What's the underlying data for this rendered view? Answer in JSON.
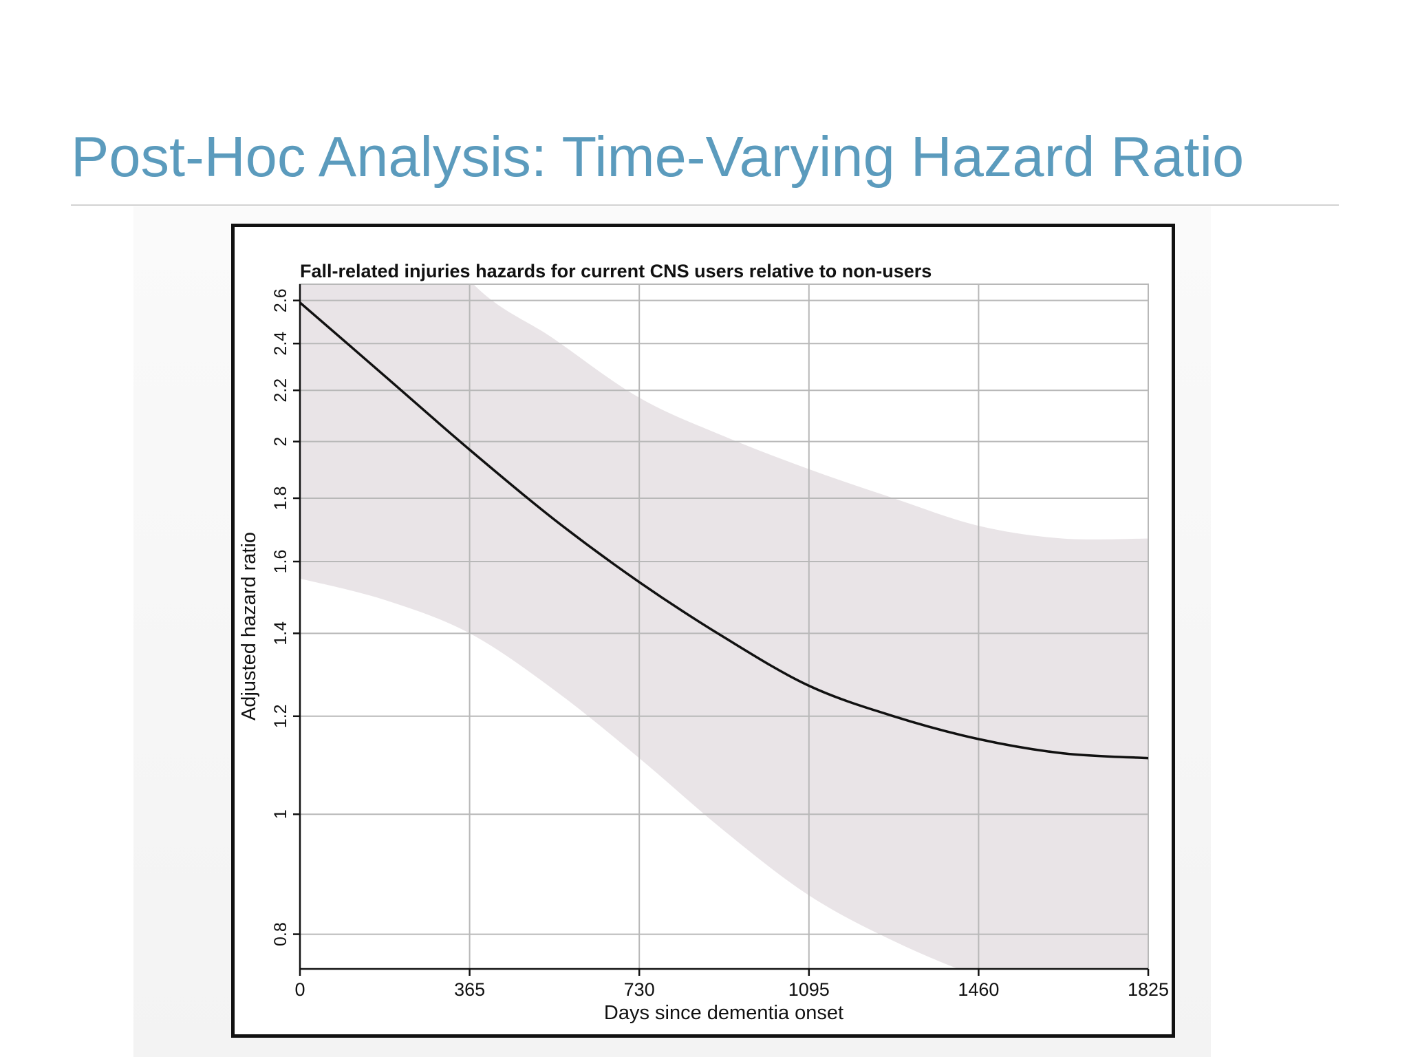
{
  "slide": {
    "title": "Post-Hoc Analysis: Time-Varying Hazard Ratio"
  },
  "colors": {
    "title": "#5b9bbd",
    "band": "#e9e4e7",
    "line": "#111111",
    "grid": "#b8b8b8"
  },
  "chart_data": {
    "type": "line",
    "title": "Fall-related injuries hazards for current CNS users relative to non-users",
    "xlabel": "Days since dementia onset",
    "ylabel": "Adjusted hazard ratio",
    "xlim": [
      0,
      1825
    ],
    "ylim": [
      0.75,
      2.68
    ],
    "y_scale": "log",
    "grid": true,
    "x_ticks": [
      0,
      365,
      730,
      1095,
      1460,
      1825
    ],
    "x_tick_labels": [
      "0",
      "365",
      "730",
      "1095",
      "1460",
      "1825"
    ],
    "y_ticks": [
      0.8,
      1,
      1.2,
      1.4,
      1.6,
      1.8,
      2,
      2.2,
      2.4,
      2.6
    ],
    "y_tick_labels": [
      "0.8",
      "1",
      "1.2",
      "1.4",
      "1.6",
      "1.8",
      "2",
      "2.2",
      "2.4",
      "2.6"
    ],
    "series": [
      {
        "x": [
          0,
          182,
          365,
          547,
          730,
          912,
          1095,
          1277,
          1460,
          1642,
          1825
        ],
        "values": [
          2.59,
          2.26,
          1.97,
          1.73,
          1.54,
          1.39,
          1.27,
          1.2,
          1.15,
          1.12,
          1.11
        ]
      }
    ],
    "confidence_band": {
      "x": [
        0,
        182,
        365,
        547,
        730,
        912,
        1095,
        1277,
        1460,
        1642,
        1825
      ],
      "lower": [
        1.55,
        1.49,
        1.4,
        1.26,
        1.11,
        0.97,
        0.86,
        0.79,
        0.74,
        0.71,
        0.7
      ],
      "upper": [
        4.2,
        3.4,
        2.7,
        2.42,
        2.17,
        2.02,
        1.9,
        1.8,
        1.71,
        1.67,
        1.67
      ]
    }
  }
}
